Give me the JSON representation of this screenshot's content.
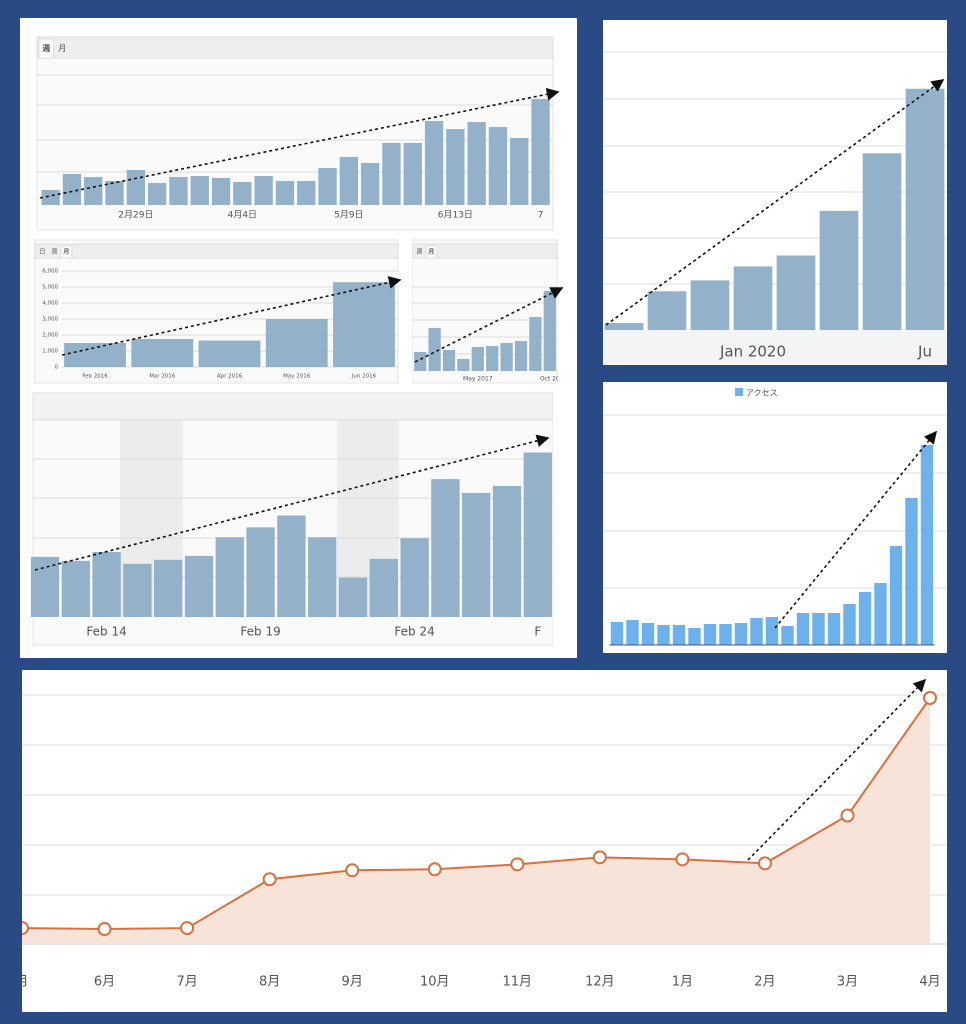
{
  "chart_data": [
    {
      "type": "bar",
      "tabs": [
        "週",
        "月"
      ],
      "color": "#93b2c9",
      "ylim": [
        0,
        130
      ],
      "categories": [
        null,
        null,
        null,
        null,
        "2月29日",
        null,
        null,
        null,
        null,
        "4月4日",
        null,
        null,
        null,
        null,
        "5月9日",
        null,
        null,
        null,
        null,
        "6月13日",
        null,
        null,
        null,
        "7"
      ],
      "values": [
        15,
        31,
        28,
        24,
        35,
        22,
        28,
        29,
        27,
        23,
        29,
        24,
        24,
        37,
        48,
        42,
        62,
        62,
        84,
        76,
        83,
        78,
        67,
        106
      ]
    },
    {
      "type": "bar",
      "tabs": [
        "日",
        "週",
        "月"
      ],
      "color": "#93b2c9",
      "ylim": [
        0,
        6000
      ],
      "yticks": [
        0,
        {
          "value": 1000,
          "label": "1,000"
        },
        {
          "value": 2000,
          "label": "2,000"
        },
        {
          "value": 3000,
          "label": "3,000"
        },
        {
          "value": 4000,
          "label": "4,000"
        },
        {
          "value": 5000,
          "label": "5,000"
        },
        {
          "value": 6000,
          "label": "6,000"
        }
      ],
      "categories": [
        "Feb 2016",
        "Mar 2016",
        "Apr 2016",
        "May 2016",
        "Jun 2016"
      ],
      "values": [
        1500,
        1750,
        1650,
        3000,
        5300
      ]
    },
    {
      "type": "bar",
      "tabs": [
        "週",
        "月"
      ],
      "color": "#93b2c9",
      "ylim": [
        0,
        100
      ],
      "categories": [
        null,
        null,
        null,
        null,
        "May 2017",
        null,
        null,
        null,
        null,
        "Oct 20"
      ],
      "values": [
        19,
        43,
        21,
        12,
        24,
        25,
        28,
        30,
        54,
        80
      ]
    },
    {
      "type": "bar",
      "color": "#93b2c9",
      "ylim": [
        0,
        200
      ],
      "categories": [
        null,
        null,
        "Feb 14",
        null,
        null,
        null,
        null,
        "Feb 19",
        null,
        null,
        null,
        null,
        "Feb 24",
        null,
        null,
        null,
        "F"
      ],
      "values": [
        61,
        57,
        66,
        54,
        58,
        62,
        81,
        91,
        103,
        81,
        40,
        59,
        80,
        140,
        126,
        133,
        167
      ]
    },
    {
      "type": "bar",
      "color": "#93b2c9",
      "ylim": [
        0,
        280
      ],
      "categories": [
        null,
        null,
        null,
        "Jan 2020",
        null,
        null,
        null,
        "Ju"
      ],
      "values": [
        7,
        39,
        50,
        64,
        75,
        120,
        178,
        243
      ]
    },
    {
      "type": "bar",
      "ylim": [
        0,
        230
      ],
      "categories": [
        null,
        null,
        null,
        null,
        null,
        null,
        null,
        null,
        null,
        null,
        null,
        null,
        null,
        null,
        null,
        null,
        null,
        null,
        null,
        null,
        null
      ],
      "series": [
        {
          "name": "アクセス",
          "color": "#6cb1ec",
          "values": [
            23,
            25,
            22,
            20,
            20,
            17,
            21,
            21,
            22,
            27,
            28,
            19,
            32,
            32,
            32,
            41,
            53,
            62,
            99,
            147,
            200
          ]
        }
      ]
    },
    {
      "type": "line",
      "color": "#d9703f",
      "area_color": "#f8e3d9",
      "ylim": [
        0,
        250
      ],
      "categories": [
        "月",
        "6月",
        "7月",
        "8月",
        "9月",
        "10月",
        "11月",
        "12月",
        "1月",
        "2月",
        "3月",
        "4月"
      ],
      "values": [
        16,
        15,
        16,
        65,
        74,
        75,
        80,
        87,
        85,
        81,
        129,
        247
      ]
    }
  ]
}
